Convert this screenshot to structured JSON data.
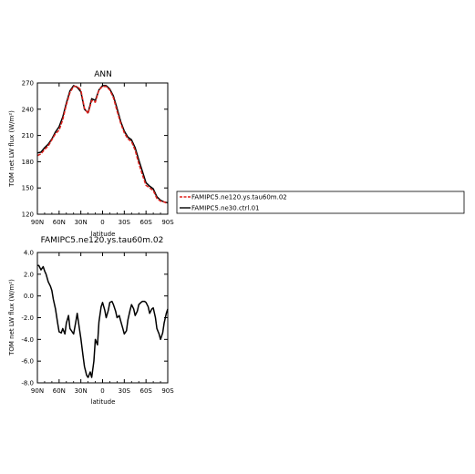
{
  "chart_data": [
    {
      "type": "line",
      "title": "ANN",
      "xlabel": "latitude",
      "ylabel": "TOM net LW flux (W/m²)",
      "xlim": [
        90,
        -90
      ],
      "ylim": [
        120,
        270
      ],
      "x_ticks": [
        90,
        60,
        30,
        0,
        -30,
        -60,
        -90
      ],
      "x_tick_labels": [
        "90N",
        "60N",
        "30N",
        "0",
        "30S",
        "60S",
        "90S"
      ],
      "y_ticks": [
        120,
        150,
        180,
        210,
        240,
        270
      ],
      "y_tick_labels": [
        "120",
        "150",
        "180",
        "210",
        "240",
        "270"
      ],
      "legend_position": "right of plot",
      "series": [
        {
          "name": "FAMIPC5.ne120.ys.tau60m.02",
          "color": "#e0201b",
          "dash": "dashed",
          "x": [
            90,
            85,
            80,
            75,
            70,
            65,
            60,
            55,
            50,
            45,
            40,
            35,
            30,
            25,
            20,
            15,
            10,
            5,
            0,
            -5,
            -10,
            -15,
            -20,
            -25,
            -30,
            -35,
            -40,
            -45,
            -50,
            -55,
            -60,
            -65,
            -70,
            -75,
            -80,
            -85,
            -90
          ],
          "y": [
            187,
            189,
            194,
            198,
            205,
            212,
            216,
            228,
            245,
            259,
            266,
            266,
            262,
            241,
            235,
            250,
            248,
            262,
            266,
            266,
            262,
            253,
            238,
            224,
            213,
            206,
            203,
            193,
            178,
            165,
            153,
            150,
            147,
            138,
            135,
            134,
            132
          ]
        },
        {
          "name": "FAMIPC5.ne30.ctrl.01",
          "color": "#000000",
          "dash": "solid",
          "x": [
            90,
            85,
            80,
            75,
            70,
            65,
            60,
            55,
            50,
            45,
            40,
            35,
            30,
            25,
            20,
            15,
            10,
            5,
            0,
            -5,
            -10,
            -15,
            -20,
            -25,
            -30,
            -35,
            -40,
            -45,
            -50,
            -55,
            -60,
            -65,
            -70,
            -75,
            -80,
            -85,
            -90
          ],
          "y": [
            190,
            191,
            196,
            200,
            206,
            214,
            220,
            231,
            247,
            261,
            267,
            265,
            260,
            240,
            236,
            252,
            250,
            262,
            267,
            267,
            263,
            255,
            241,
            226,
            215,
            208,
            205,
            196,
            182,
            169,
            156,
            152,
            149,
            140,
            136,
            134,
            133
          ]
        }
      ]
    },
    {
      "type": "line",
      "title": "FAMIPC5.ne120.ys.tau60m.02",
      "xlabel": "latitude",
      "ylabel": "TOM net LW flux (W/m²)",
      "xlim": [
        90,
        -90
      ],
      "ylim": [
        -8,
        4
      ],
      "x_ticks": [
        90,
        60,
        30,
        0,
        -30,
        -60,
        -90
      ],
      "x_tick_labels": [
        "90N",
        "60N",
        "30N",
        "0",
        "30S",
        "60S",
        "90S"
      ],
      "y_ticks": [
        -8,
        -6,
        -4,
        -2,
        0,
        2,
        4
      ],
      "y_tick_labels": [
        "-8.0",
        "-6.0",
        "-4.0",
        "-2.0",
        "0.0",
        "2.0",
        "4.0"
      ],
      "series": [
        {
          "color": "#000000",
          "dash": "solid",
          "x": [
            90,
            88,
            85,
            82,
            80,
            78,
            75,
            72,
            70,
            68,
            65,
            62,
            60,
            57,
            55,
            52,
            50,
            47,
            45,
            42,
            40,
            37,
            35,
            32,
            30,
            27,
            25,
            22,
            20,
            17,
            15,
            12,
            10,
            7,
            5,
            2,
            0,
            -3,
            -5,
            -8,
            -10,
            -13,
            -15,
            -18,
            -20,
            -23,
            -25,
            -28,
            -30,
            -33,
            -35,
            -38,
            -40,
            -43,
            -45,
            -48,
            -50,
            -53,
            -55,
            -58,
            -60,
            -63,
            -65,
            -68,
            -70,
            -73,
            -75,
            -78,
            -80,
            -83,
            -85,
            -88,
            -90
          ],
          "y": [
            2.8,
            2.8,
            2.4,
            2.7,
            2.3,
            2.0,
            1.3,
            0.9,
            0.5,
            -0.3,
            -1.2,
            -2.5,
            -3.3,
            -3.4,
            -3.0,
            -3.5,
            -2.5,
            -1.8,
            -3.0,
            -3.3,
            -3.5,
            -2.4,
            -1.6,
            -3.0,
            -3.9,
            -5.5,
            -6.5,
            -7.3,
            -7.5,
            -7.0,
            -7.5,
            -6.0,
            -4.0,
            -4.5,
            -2.4,
            -1.0,
            -0.6,
            -1.3,
            -2.0,
            -1.3,
            -0.6,
            -0.5,
            -0.8,
            -1.4,
            -2.0,
            -1.8,
            -2.3,
            -3.0,
            -3.5,
            -3.2,
            -2.2,
            -1.3,
            -0.8,
            -1.2,
            -1.8,
            -1.4,
            -0.8,
            -0.6,
            -0.5,
            -0.5,
            -0.6,
            -1.0,
            -1.6,
            -1.2,
            -1.1,
            -2.0,
            -3.0,
            -3.5,
            -4.0,
            -3.4,
            -2.5,
            -1.6,
            -1.2
          ]
        }
      ]
    }
  ]
}
